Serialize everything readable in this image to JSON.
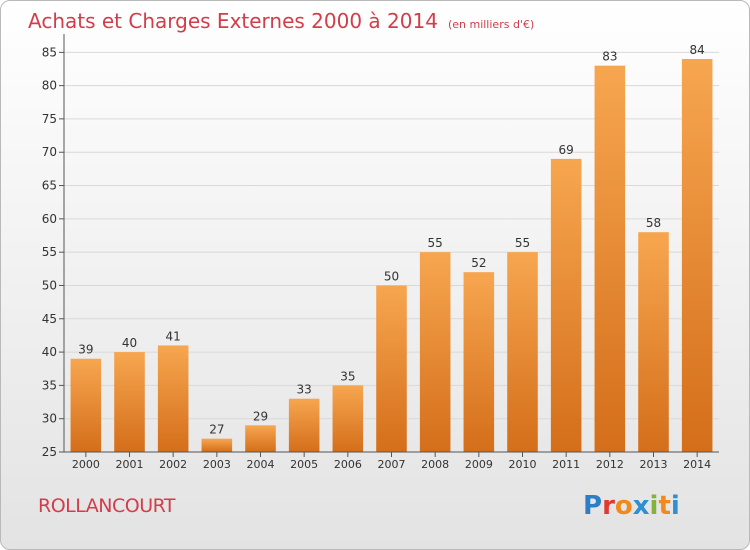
{
  "header": {
    "title": "Achats et Charges Externes 2000 à 2014",
    "unit": "(en milliers d'€)"
  },
  "footer": {
    "commune": "ROLLANCOURT",
    "brand": "Proxiti"
  },
  "colors": {
    "title": "#d23d4a",
    "bar_light": "#f7a650",
    "bar_dark": "#d46e1a",
    "brand_letters": [
      "#2c7fc7",
      "#e03a2f",
      "#f08a1e",
      "#2e8fd1",
      "#84b23a",
      "#f08a1e",
      "#2e8fd1"
    ]
  },
  "chart_data": {
    "type": "bar",
    "categories": [
      "2000",
      "2001",
      "2002",
      "2003",
      "2004",
      "2005",
      "2006",
      "2007",
      "2008",
      "2009",
      "2010",
      "2011",
      "2012",
      "2013",
      "2014"
    ],
    "values": [
      39,
      40,
      41,
      27,
      29,
      33,
      35,
      50,
      55,
      52,
      55,
      69,
      83,
      58,
      84
    ],
    "yticks": [
      25,
      30,
      35,
      40,
      45,
      50,
      55,
      60,
      65,
      70,
      75,
      80,
      85
    ],
    "ylim": [
      25,
      87
    ],
    "grid": true
  }
}
